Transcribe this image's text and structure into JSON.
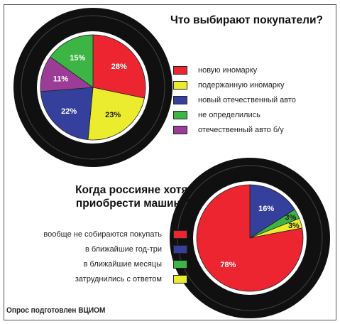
{
  "chart_data": [
    {
      "type": "pie",
      "title": "Что выбирают покупатели?",
      "slices": [
        {
          "label": "новую иномарку",
          "value": 28,
          "display": "28%",
          "color": "#ec2530",
          "text_color": "#ffffff"
        },
        {
          "label": "подержанную иномарку",
          "value": 23,
          "display": "23%",
          "color": "#ecec2e",
          "text_color": "#1a1a1a"
        },
        {
          "label": "новый отечественный авто",
          "value": 22,
          "display": "22%",
          "color": "#353f9c",
          "text_color": "#ffffff"
        },
        {
          "label": "не определились",
          "value": 15,
          "display": "15%",
          "color": "#3cb544",
          "text_color": "#ffffff"
        },
        {
          "label": "отечественный авто б/у",
          "value": 11,
          "display": "11%",
          "color": "#9b3d96",
          "text_color": "#ffffff"
        }
      ],
      "draw_order": [
        0,
        1,
        2,
        4,
        3
      ],
      "start_angle_deg": 90,
      "legend_order": [
        0,
        1,
        2,
        3,
        4
      ],
      "legend_position": "right"
    },
    {
      "type": "pie",
      "title": "Когда россияне хотят приобрести машину?",
      "slices": [
        {
          "label": "вообще не собираются покупать",
          "value": 78,
          "display": "78%",
          "color": "#ec2530",
          "text_color": "#ffffff"
        },
        {
          "label": "в ближайшие год-три",
          "value": 16,
          "display": "16%",
          "color": "#353f9c",
          "text_color": "#ffffff"
        },
        {
          "label": "в ближайшие месяцы",
          "value": 3,
          "display": "3%",
          "color": "#3cb544",
          "text_color": "#1a1a1a"
        },
        {
          "label": "затруднились с ответом",
          "value": 3,
          "display": "3%",
          "color": "#ecec2e",
          "text_color": "#1a1a1a"
        }
      ],
      "draw_order": [
        1,
        2,
        3,
        0
      ],
      "start_angle_deg": 90,
      "legend_order": [
        0,
        1,
        2,
        3
      ],
      "legend_position": "left"
    }
  ],
  "footer": "Опрос подготовлен ВЦИОМ"
}
